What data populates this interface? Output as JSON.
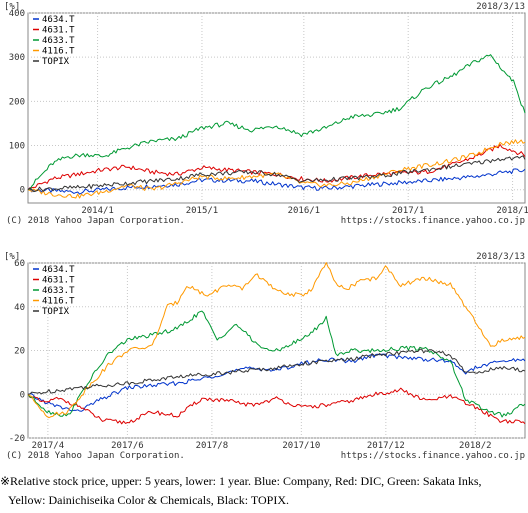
{
  "chart_data": [
    {
      "type": "line",
      "unit_label": "[%]",
      "date_label": "2018/3/13",
      "copyright": "(C) 2018 Yahoo Japan Corporation.",
      "source_url": "https://stocks.finance.yahoo.co.jp",
      "ylim": [
        -30,
        400
      ],
      "y_ticks": [
        0,
        100,
        200,
        300,
        400
      ],
      "x_ticks": [
        {
          "label": "2014/1",
          "t": 0.14
        },
        {
          "label": "2015/1",
          "t": 0.35
        },
        {
          "label": "2016/1",
          "t": 0.555
        },
        {
          "label": "2017/1",
          "t": 0.765
        },
        {
          "label": "2018/1",
          "t": 0.975
        }
      ],
      "grid": true,
      "legend_position": "top-left",
      "series": [
        {
          "name": "4634.T",
          "color": "#0033cc",
          "points": [
            [
              0,
              0
            ],
            [
              0.1,
              -5
            ],
            [
              0.2,
              5
            ],
            [
              0.3,
              12
            ],
            [
              0.35,
              22
            ],
            [
              0.45,
              20
            ],
            [
              0.55,
              5
            ],
            [
              0.6,
              3
            ],
            [
              0.7,
              12
            ],
            [
              0.8,
              20
            ],
            [
              0.9,
              30
            ],
            [
              0.95,
              38
            ],
            [
              1,
              45
            ]
          ]
        },
        {
          "name": "4631.T",
          "color": "#dd0000",
          "points": [
            [
              0,
              0
            ],
            [
              0.05,
              25
            ],
            [
              0.1,
              35
            ],
            [
              0.15,
              45
            ],
            [
              0.2,
              52
            ],
            [
              0.25,
              40
            ],
            [
              0.3,
              35
            ],
            [
              0.35,
              50
            ],
            [
              0.4,
              45
            ],
            [
              0.45,
              40
            ],
            [
              0.5,
              35
            ],
            [
              0.55,
              25
            ],
            [
              0.6,
              20
            ],
            [
              0.7,
              35
            ],
            [
              0.8,
              40
            ],
            [
              0.85,
              55
            ],
            [
              0.9,
              75
            ],
            [
              0.95,
              100
            ],
            [
              1,
              78
            ]
          ]
        },
        {
          "name": "4633.T",
          "color": "#009933",
          "points": [
            [
              0,
              0
            ],
            [
              0.02,
              25
            ],
            [
              0.05,
              60
            ],
            [
              0.08,
              75
            ],
            [
              0.12,
              80
            ],
            [
              0.15,
              75
            ],
            [
              0.2,
              95
            ],
            [
              0.25,
              110
            ],
            [
              0.3,
              115
            ],
            [
              0.35,
              140
            ],
            [
              0.4,
              150
            ],
            [
              0.45,
              135
            ],
            [
              0.5,
              145
            ],
            [
              0.55,
              125
            ],
            [
              0.6,
              140
            ],
            [
              0.65,
              165
            ],
            [
              0.7,
              170
            ],
            [
              0.75,
              185
            ],
            [
              0.8,
              230
            ],
            [
              0.85,
              255
            ],
            [
              0.9,
              290
            ],
            [
              0.93,
              305
            ],
            [
              0.96,
              265
            ],
            [
              0.98,
              240
            ],
            [
              1,
              170
            ]
          ]
        },
        {
          "name": "4116.T",
          "color": "#ff9900",
          "points": [
            [
              0,
              0
            ],
            [
              0.05,
              -10
            ],
            [
              0.1,
              -15
            ],
            [
              0.15,
              -5
            ],
            [
              0.2,
              10
            ],
            [
              0.25,
              0
            ],
            [
              0.3,
              15
            ],
            [
              0.35,
              30
            ],
            [
              0.4,
              25
            ],
            [
              0.45,
              30
            ],
            [
              0.5,
              35
            ],
            [
              0.55,
              15
            ],
            [
              0.6,
              10
            ],
            [
              0.65,
              15
            ],
            [
              0.7,
              30
            ],
            [
              0.75,
              45
            ],
            [
              0.8,
              55
            ],
            [
              0.85,
              65
            ],
            [
              0.9,
              80
            ],
            [
              0.95,
              105
            ],
            [
              1,
              110
            ]
          ]
        },
        {
          "name": "TOPIX",
          "color": "#333333",
          "points": [
            [
              0,
              0
            ],
            [
              0.1,
              5
            ],
            [
              0.2,
              15
            ],
            [
              0.3,
              25
            ],
            [
              0.35,
              35
            ],
            [
              0.45,
              40
            ],
            [
              0.5,
              35
            ],
            [
              0.55,
              20
            ],
            [
              0.6,
              22
            ],
            [
              0.7,
              30
            ],
            [
              0.8,
              45
            ],
            [
              0.9,
              60
            ],
            [
              0.95,
              70
            ],
            [
              1,
              72
            ]
          ]
        }
      ]
    },
    {
      "type": "line",
      "unit_label": "[%]",
      "date_label": "2018/3/13",
      "copyright": "(C) 2018 Yahoo Japan Corporation.",
      "source_url": "https://stocks.finance.yahoo.co.jp",
      "ylim": [
        -20,
        60
      ],
      "y_ticks": [
        -20,
        0,
        20,
        40,
        60
      ],
      "x_ticks": [
        {
          "label": "2017/4",
          "t": 0.04
        },
        {
          "label": "2017/6",
          "t": 0.2
        },
        {
          "label": "2017/8",
          "t": 0.37
        },
        {
          "label": "2017/10",
          "t": 0.55
        },
        {
          "label": "2017/12",
          "t": 0.72
        },
        {
          "label": "2018/2",
          "t": 0.9
        }
      ],
      "grid": true,
      "legend_position": "top-left",
      "series": [
        {
          "name": "4634.T",
          "color": "#0033cc",
          "points": [
            [
              0,
              0
            ],
            [
              0.05,
              -5
            ],
            [
              0.1,
              -8
            ],
            [
              0.15,
              -2
            ],
            [
              0.2,
              3
            ],
            [
              0.3,
              5
            ],
            [
              0.35,
              7
            ],
            [
              0.4,
              10
            ],
            [
              0.45,
              12
            ],
            [
              0.5,
              11
            ],
            [
              0.55,
              14
            ],
            [
              0.6,
              16
            ],
            [
              0.65,
              15
            ],
            [
              0.7,
              18
            ],
            [
              0.75,
              17
            ],
            [
              0.8,
              16
            ],
            [
              0.85,
              15
            ],
            [
              0.88,
              10
            ],
            [
              0.9,
              12
            ],
            [
              0.95,
              15
            ],
            [
              1,
              16
            ]
          ]
        },
        {
          "name": "4631.T",
          "color": "#dd0000",
          "points": [
            [
              0,
              0
            ],
            [
              0.03,
              -4
            ],
            [
              0.06,
              -2
            ],
            [
              0.1,
              -5
            ],
            [
              0.15,
              -12
            ],
            [
              0.2,
              -13
            ],
            [
              0.25,
              -8
            ],
            [
              0.3,
              -10
            ],
            [
              0.35,
              -2
            ],
            [
              0.4,
              -3
            ],
            [
              0.45,
              -5
            ],
            [
              0.5,
              -2
            ],
            [
              0.55,
              -6
            ],
            [
              0.6,
              -5
            ],
            [
              0.65,
              -3
            ],
            [
              0.7,
              0
            ],
            [
              0.75,
              2
            ],
            [
              0.8,
              -3
            ],
            [
              0.85,
              -1
            ],
            [
              0.9,
              -6
            ],
            [
              0.95,
              -12
            ],
            [
              1,
              -13
            ]
          ]
        },
        {
          "name": "4633.T",
          "color": "#009933",
          "points": [
            [
              0,
              0
            ],
            [
              0.04,
              -8
            ],
            [
              0.08,
              -10
            ],
            [
              0.12,
              5
            ],
            [
              0.16,
              18
            ],
            [
              0.2,
              25
            ],
            [
              0.25,
              27
            ],
            [
              0.3,
              30
            ],
            [
              0.35,
              38
            ],
            [
              0.38,
              25
            ],
            [
              0.42,
              32
            ],
            [
              0.45,
              25
            ],
            [
              0.48,
              20
            ],
            [
              0.5,
              20
            ],
            [
              0.55,
              25
            ],
            [
              0.58,
              30
            ],
            [
              0.6,
              35
            ],
            [
              0.62,
              18
            ],
            [
              0.65,
              20
            ],
            [
              0.7,
              20
            ],
            [
              0.75,
              21
            ],
            [
              0.8,
              21
            ],
            [
              0.85,
              15
            ],
            [
              0.88,
              -2
            ],
            [
              0.9,
              -5
            ],
            [
              0.93,
              -8
            ],
            [
              0.96,
              -10
            ],
            [
              1,
              -4
            ]
          ]
        },
        {
          "name": "4116.T",
          "color": "#ff9900",
          "points": [
            [
              0,
              0
            ],
            [
              0.04,
              -10
            ],
            [
              0.08,
              -8
            ],
            [
              0.12,
              3
            ],
            [
              0.16,
              13
            ],
            [
              0.2,
              20
            ],
            [
              0.25,
              22
            ],
            [
              0.28,
              40
            ],
            [
              0.3,
              42
            ],
            [
              0.32,
              50
            ],
            [
              0.36,
              45
            ],
            [
              0.4,
              50
            ],
            [
              0.43,
              48
            ],
            [
              0.46,
              55
            ],
            [
              0.5,
              47
            ],
            [
              0.55,
              45
            ],
            [
              0.57,
              48
            ],
            [
              0.6,
              60
            ],
            [
              0.62,
              50
            ],
            [
              0.64,
              48
            ],
            [
              0.67,
              52
            ],
            [
              0.7,
              53
            ],
            [
              0.72,
              58
            ],
            [
              0.75,
              50
            ],
            [
              0.8,
              53
            ],
            [
              0.85,
              50
            ],
            [
              0.88,
              40
            ],
            [
              0.9,
              33
            ],
            [
              0.93,
              22
            ],
            [
              0.96,
              25
            ],
            [
              1,
              26
            ]
          ]
        },
        {
          "name": "TOPIX",
          "color": "#333333",
          "points": [
            [
              0,
              0
            ],
            [
              0.1,
              3
            ],
            [
              0.2,
              5
            ],
            [
              0.3,
              8
            ],
            [
              0.4,
              10
            ],
            [
              0.5,
              12
            ],
            [
              0.55,
              14
            ],
            [
              0.6,
              15
            ],
            [
              0.65,
              16
            ],
            [
              0.7,
              18
            ],
            [
              0.75,
              19
            ],
            [
              0.8,
              20
            ],
            [
              0.85,
              18
            ],
            [
              0.88,
              10
            ],
            [
              0.9,
              10
            ],
            [
              0.95,
              12
            ],
            [
              1,
              11
            ]
          ]
        }
      ]
    }
  ],
  "caption": {
    "line1": "※Relative stock price, upper: 5 years, lower: 1 year. Blue: Company, Red: DIC, Green: Sakata Inks,",
    "line2": "Yellow: Dainichiseika Color & Chemicals, Black: TOPIX."
  }
}
